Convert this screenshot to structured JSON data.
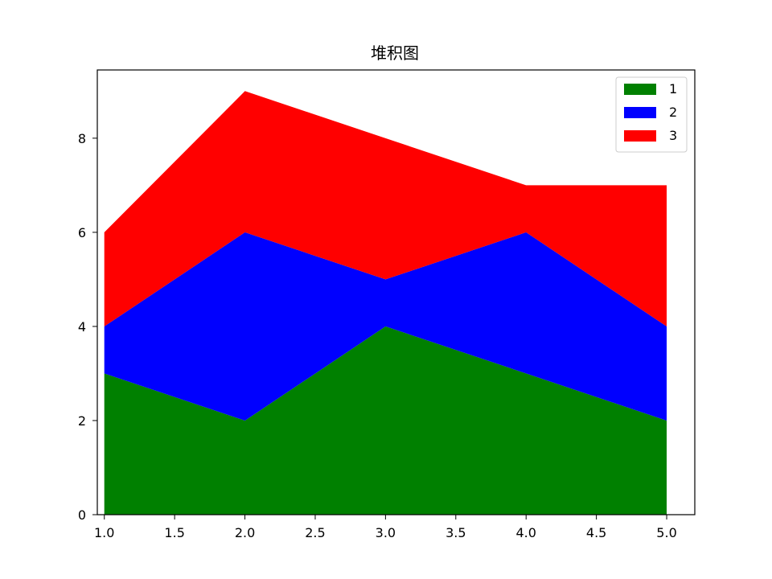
{
  "chart_data": {
    "type": "area",
    "stacked": true,
    "title": "堆积图",
    "xlabel": "",
    "ylabel": "",
    "x": [
      1,
      2,
      3,
      4,
      5
    ],
    "xlim": [
      0.95,
      5.2
    ],
    "ylim": [
      0,
      9.45
    ],
    "xticks": [
      1.0,
      1.5,
      2.0,
      2.5,
      3.0,
      3.5,
      4.0,
      4.5,
      5.0
    ],
    "xtick_labels": [
      "1.0",
      "1.5",
      "2.0",
      "2.5",
      "3.0",
      "3.5",
      "4.0",
      "4.5",
      "5.0"
    ],
    "yticks": [
      0,
      2,
      4,
      6,
      8
    ],
    "ytick_labels": [
      "0",
      "2",
      "4",
      "6",
      "8"
    ],
    "grid": false,
    "legend_position": "top-right",
    "series": [
      {
        "name": "1",
        "color": "#008000",
        "values": [
          3,
          2,
          4,
          3,
          2
        ]
      },
      {
        "name": "2",
        "color": "#0000ff",
        "values": [
          1,
          4,
          1,
          3,
          2
        ]
      },
      {
        "name": "3",
        "color": "#ff0000",
        "values": [
          2,
          3,
          3,
          1,
          3
        ]
      }
    ]
  }
}
